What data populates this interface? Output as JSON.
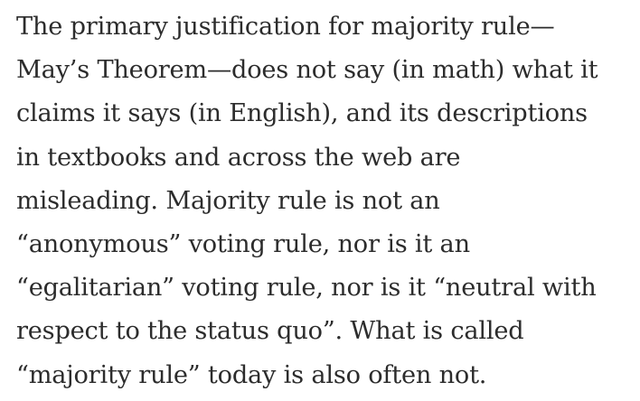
{
  "paragraph": {
    "lines": [
      "The primary justification for majority rule—",
      "May’s Theorem—does not say (in math) what it",
      "claims it says (in English), and its descriptions",
      "in textbooks and across the web are",
      "misleading. Majority rule is not an",
      "“anonymous” voting rule, nor is it an",
      "“egalitarian” voting rule, nor is it “neutral with",
      "respect to the status quo”. What is called",
      "“majority rule” today is also often not."
    ]
  }
}
